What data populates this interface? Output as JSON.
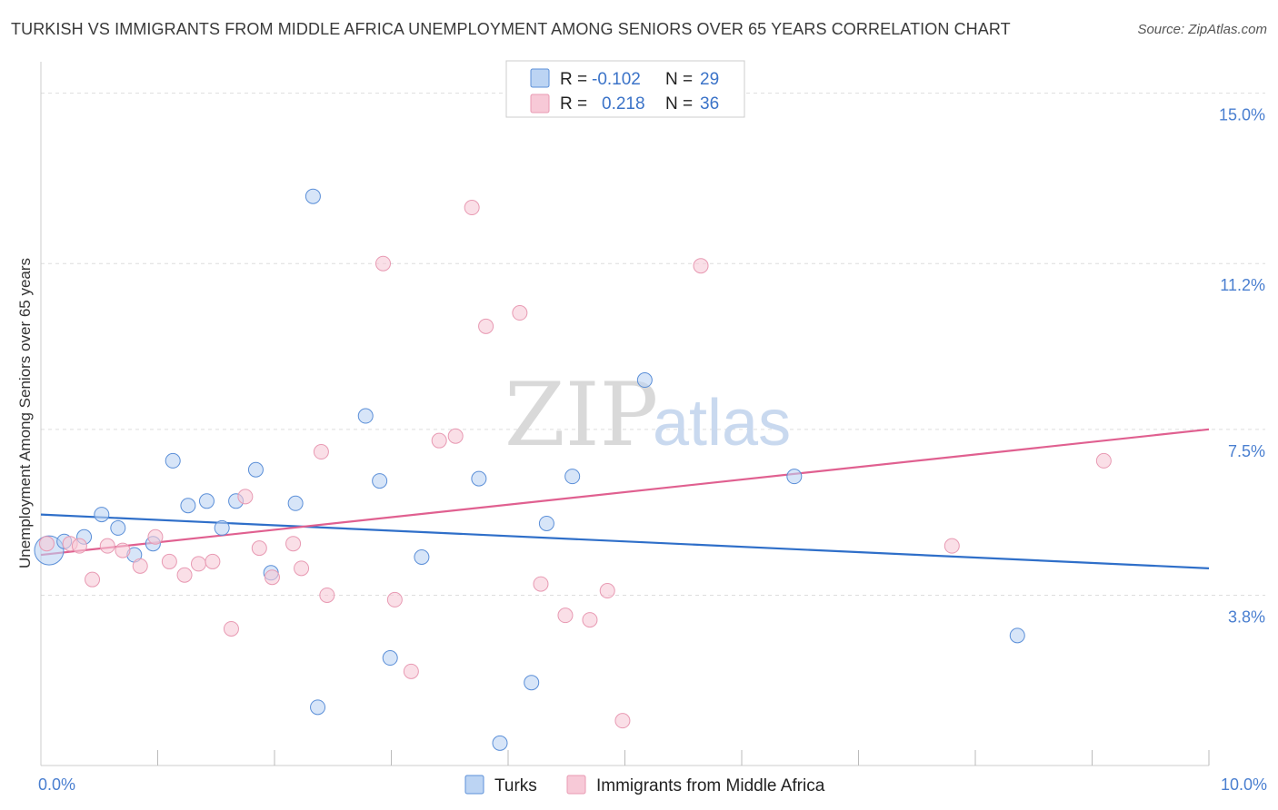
{
  "title": "TURKISH VS IMMIGRANTS FROM MIDDLE AFRICA UNEMPLOYMENT AMONG SENIORS OVER 65 YEARS CORRELATION CHART",
  "source": "Source: ZipAtlas.com",
  "watermark": {
    "zip": "ZIP",
    "atlas": "atlas"
  },
  "colors": {
    "turks": "#5b8fd8",
    "turks_fill": "#bcd4f3",
    "turks_line": "#2f6fc9",
    "africa": "#e89ab3",
    "africa_fill": "#f7c9d7",
    "africa_line": "#e06090",
    "tick": "#4a7fd0",
    "grid": "#dddddd"
  },
  "legend": {
    "r_label": "R =",
    "n_label": "N =",
    "turks_r": "-0.102",
    "turks_n": "29",
    "africa_r": "0.218",
    "africa_n": "36"
  },
  "chart_data": {
    "type": "scatter",
    "title": "TURKISH VS IMMIGRANTS FROM MIDDLE AFRICA UNEMPLOYMENT AMONG SENIORS OVER 65 YEARS CORRELATION CHART",
    "xlabel": "",
    "ylabel": "Unemployment Among Seniors over 65 years",
    "xlim": [
      0,
      10
    ],
    "ylim": [
      0,
      15.5
    ],
    "x_tick_labels": [
      "0.0%",
      "10.0%"
    ],
    "y_ticks": [
      3.8,
      7.5,
      11.2,
      15.0
    ],
    "y_tick_labels": [
      "3.8%",
      "7.5%",
      "11.2%",
      "15.0%"
    ],
    "grid": true,
    "legend_position": "top-center",
    "series": [
      {
        "name": "Turks",
        "r": -0.102,
        "n": 29,
        "trend": [
          [
            0,
            5.6
          ],
          [
            10,
            4.4
          ]
        ],
        "points": [
          [
            0.07,
            4.8
          ],
          [
            0.2,
            5.0
          ],
          [
            0.37,
            5.1
          ],
          [
            0.52,
            5.6
          ],
          [
            0.66,
            5.3
          ],
          [
            0.8,
            4.7
          ],
          [
            0.96,
            4.95
          ],
          [
            1.13,
            6.8
          ],
          [
            1.26,
            5.8
          ],
          [
            1.42,
            5.9
          ],
          [
            1.55,
            5.3
          ],
          [
            1.67,
            5.9
          ],
          [
            1.84,
            6.6
          ],
          [
            1.97,
            4.3
          ],
          [
            2.18,
            5.85
          ],
          [
            2.33,
            12.7
          ],
          [
            2.37,
            1.3
          ],
          [
            2.78,
            7.8
          ],
          [
            2.9,
            6.35
          ],
          [
            2.99,
            2.4
          ],
          [
            3.26,
            4.65
          ],
          [
            3.75,
            6.4
          ],
          [
            3.93,
            0.5
          ],
          [
            4.2,
            1.85
          ],
          [
            4.33,
            5.4
          ],
          [
            4.55,
            6.45
          ],
          [
            5.17,
            8.6
          ],
          [
            6.45,
            6.45
          ],
          [
            8.36,
            2.9
          ]
        ]
      },
      {
        "name": "Immigrants from Middle Africa",
        "r": 0.218,
        "n": 36,
        "trend": [
          [
            0,
            4.7
          ],
          [
            10,
            7.5
          ]
        ],
        "points": [
          [
            0.05,
            4.95
          ],
          [
            0.25,
            4.95
          ],
          [
            0.33,
            4.9
          ],
          [
            0.44,
            4.15
          ],
          [
            0.57,
            4.9
          ],
          [
            0.7,
            4.8
          ],
          [
            0.85,
            4.45
          ],
          [
            0.98,
            5.1
          ],
          [
            1.1,
            4.55
          ],
          [
            1.23,
            4.25
          ],
          [
            1.35,
            4.5
          ],
          [
            1.47,
            4.55
          ],
          [
            1.63,
            3.05
          ],
          [
            1.75,
            6.0
          ],
          [
            1.87,
            4.85
          ],
          [
            1.98,
            4.2
          ],
          [
            2.16,
            4.95
          ],
          [
            2.23,
            4.4
          ],
          [
            2.45,
            3.8
          ],
          [
            2.4,
            7.0
          ],
          [
            2.93,
            11.2
          ],
          [
            3.03,
            3.7
          ],
          [
            3.17,
            2.1
          ],
          [
            3.41,
            7.25
          ],
          [
            3.55,
            7.35
          ],
          [
            3.69,
            12.45
          ],
          [
            3.81,
            9.8
          ],
          [
            4.1,
            10.1
          ],
          [
            4.28,
            4.05
          ],
          [
            4.49,
            3.35
          ],
          [
            4.7,
            3.25
          ],
          [
            4.85,
            3.9
          ],
          [
            4.98,
            1.0
          ],
          [
            5.65,
            11.15
          ],
          [
            7.8,
            4.9
          ],
          [
            9.1,
            6.8
          ]
        ]
      }
    ]
  }
}
